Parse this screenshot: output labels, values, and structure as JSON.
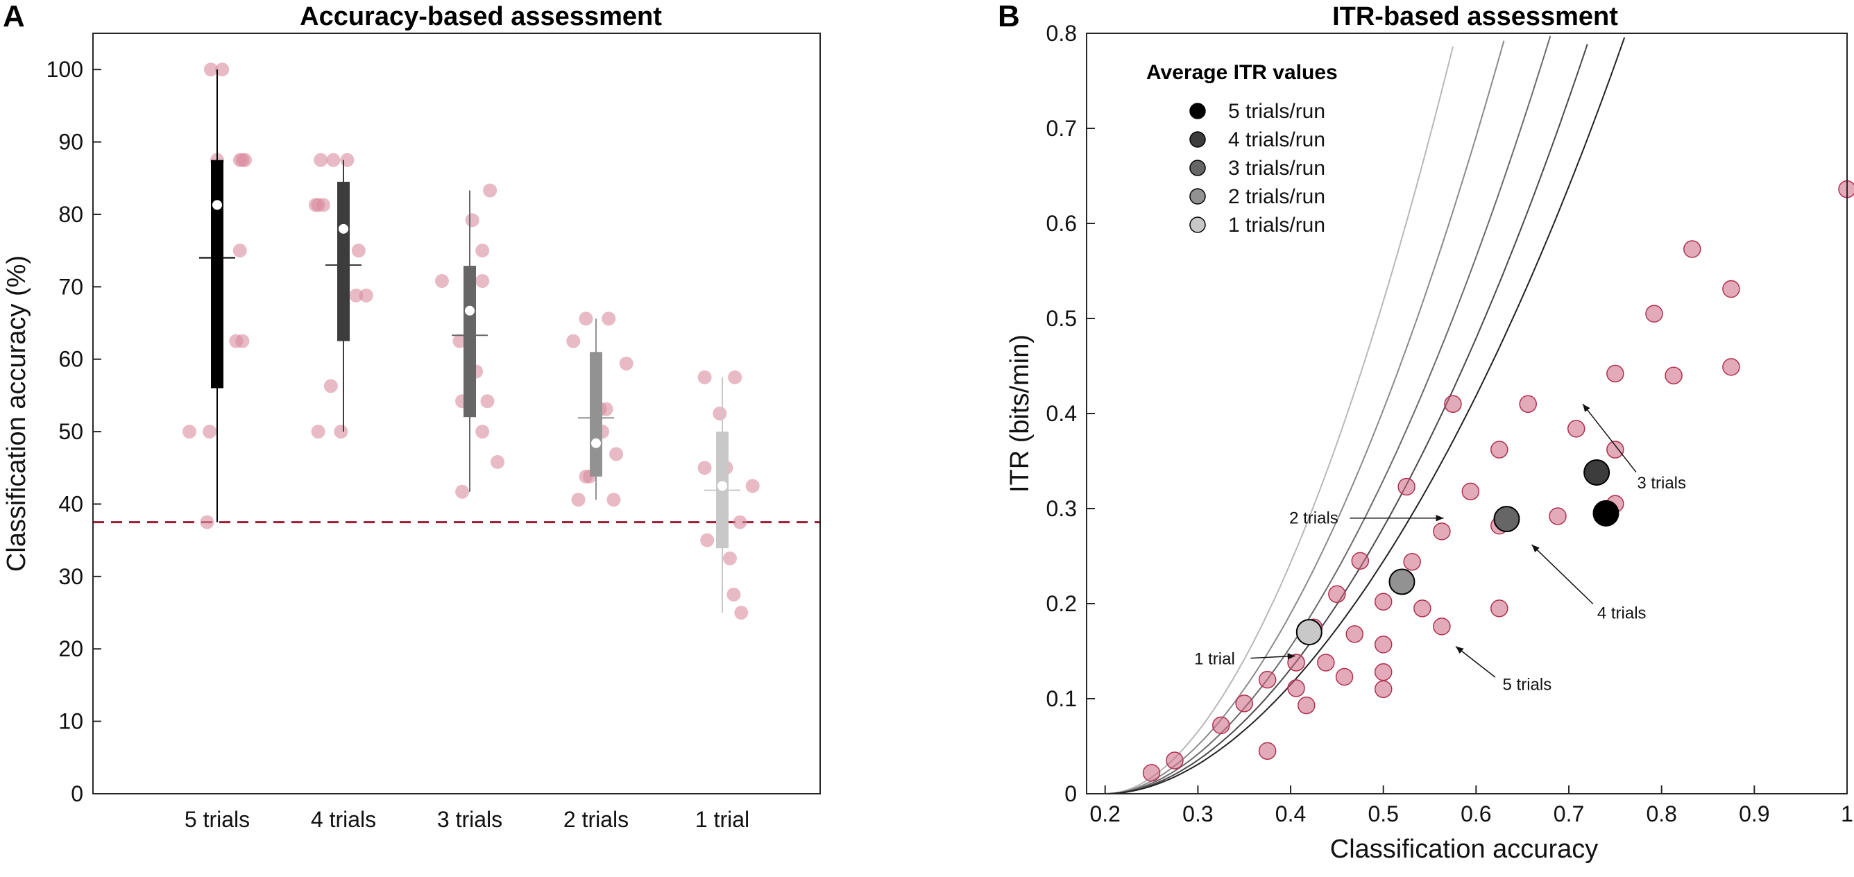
{
  "chart_data": [
    {
      "panel": "A",
      "type": "box+scatter",
      "title": "Accuracy-based assessment",
      "xlabel": "",
      "ylabel": "Classification accuracy (%)",
      "ylim": [
        0,
        105
      ],
      "yticks": [
        0,
        10,
        20,
        30,
        40,
        50,
        60,
        70,
        80,
        90,
        100
      ],
      "chance_level": 37.5,
      "chance_color": "#9b1b30",
      "point_color": "#d98c9e",
      "categories": [
        "5 trials",
        "4 trials",
        "3 trials",
        "2 trials",
        "1 trial"
      ],
      "boxes": [
        {
          "name": "5 trials",
          "whisker_low": 37.5,
          "q1": 56,
          "median": 74,
          "q3": 87.5,
          "whisker_high": 100,
          "mean": 81.3,
          "color": "#000000"
        },
        {
          "name": "4 trials",
          "whisker_low": 50,
          "q1": 62.5,
          "median": 73,
          "q3": 84.5,
          "whisker_high": 87.5,
          "mean": 78,
          "color": "#3c3c3c"
        },
        {
          "name": "3 trials",
          "whisker_low": 41.7,
          "q1": 52,
          "median": 63.3,
          "q3": 72.9,
          "whisker_high": 83.3,
          "mean": 66.7,
          "color": "#666666"
        },
        {
          "name": "2 trials",
          "whisker_low": 40.6,
          "q1": 43.8,
          "median": 51.9,
          "q3": 61,
          "whisker_high": 65.6,
          "mean": 48.4,
          "color": "#929292"
        },
        {
          "name": "1 trial",
          "whisker_low": 25,
          "q1": 33.9,
          "median": 41.9,
          "q3": 50,
          "whisker_high": 57.5,
          "mean": 42.5,
          "color": "#c8c8c8"
        }
      ],
      "points": [
        [
          [
            -0.22,
            50
          ],
          [
            -0.06,
            50
          ],
          [
            -0.08,
            37.5
          ],
          [
            -0.05,
            100
          ],
          [
            0.04,
            100
          ],
          [
            0.0,
            87.5
          ],
          [
            0.18,
            87.5
          ],
          [
            0.22,
            87.5
          ],
          [
            0.2,
            87.5
          ],
          [
            0.18,
            75
          ],
          [
            0.15,
            62.5
          ],
          [
            0.2,
            62.5
          ]
        ],
        [
          [
            -0.2,
            81.3
          ],
          [
            -0.16,
            81.3
          ],
          [
            -0.22,
            81.3
          ],
          [
            -0.18,
            87.5
          ],
          [
            -0.08,
            87.5
          ],
          [
            0.03,
            87.5
          ],
          [
            -0.2,
            50
          ],
          [
            -0.02,
            50
          ],
          [
            -0.1,
            56.3
          ],
          [
            0.12,
            75
          ],
          [
            0.1,
            68.8
          ],
          [
            0.18,
            68.8
          ]
        ],
        [
          [
            -0.22,
            70.8
          ],
          [
            -0.08,
            62.5
          ],
          [
            0.02,
            79.2
          ],
          [
            0.1,
            75
          ],
          [
            0.1,
            70.8
          ],
          [
            0.16,
            83.3
          ],
          [
            0.14,
            54.2
          ],
          [
            -0.06,
            54.2
          ],
          [
            0.1,
            50
          ],
          [
            0.22,
            45.8
          ],
          [
            -0.06,
            41.7
          ],
          [
            0.05,
            58.3
          ]
        ],
        [
          [
            -0.18,
            62.5
          ],
          [
            -0.08,
            65.6
          ],
          [
            0.1,
            65.6
          ],
          [
            0.24,
            59.4
          ],
          [
            0.16,
            46.9
          ],
          [
            0.05,
            50
          ],
          [
            -0.08,
            43.8
          ],
          [
            -0.05,
            43.8
          ],
          [
            -0.14,
            40.6
          ],
          [
            0.14,
            40.6
          ],
          [
            0.03,
            53.1
          ],
          [
            0.08,
            53.1
          ]
        ],
        [
          [
            -0.14,
            57.5
          ],
          [
            0.1,
            57.5
          ],
          [
            -0.02,
            52.5
          ],
          [
            -0.14,
            45
          ],
          [
            0.03,
            45
          ],
          [
            0.24,
            42.5
          ],
          [
            0.14,
            37.5
          ],
          [
            -0.12,
            35
          ],
          [
            0.06,
            32.5
          ],
          [
            0.09,
            27.5
          ],
          [
            0.15,
            25
          ]
        ]
      ]
    },
    {
      "panel": "B",
      "type": "line+scatter",
      "title": "ITR-based assessment",
      "xlabel": "Classification accuracy",
      "ylabel": "ITR (bits/min)",
      "xlim": [
        0.18,
        1.0
      ],
      "ylim": [
        0,
        0.8
      ],
      "xticks": [
        0.2,
        0.3,
        0.4,
        0.5,
        0.6,
        0.7,
        0.8,
        0.9,
        1
      ],
      "yticks": [
        0,
        0.1,
        0.2,
        0.3,
        0.4,
        0.5,
        0.6,
        0.7,
        0.8
      ],
      "curves": [
        {
          "name": "1 trial",
          "scale": 1.61,
          "color": "#b8b8b8"
        },
        {
          "name": "2 trials",
          "scale": 1.255,
          "color": "#8a8a8a"
        },
        {
          "name": "3 trials",
          "scale": 1.025,
          "color": "#6a6a6a"
        },
        {
          "name": "4 trials",
          "scale": 0.87,
          "color": "#4a4a4a"
        },
        {
          "name": "5 trials",
          "scale": 0.76,
          "color": "#222222"
        }
      ],
      "points": [
        [
          [
            0.25,
            0.022
          ],
          [
            0.275,
            0.035
          ],
          [
            0.325,
            0.072
          ],
          [
            0.375,
            0.12
          ],
          [
            0.425,
            0.175
          ],
          [
            0.45,
            0.21
          ],
          [
            0.475,
            0.245
          ],
          [
            0.525,
            0.323
          ],
          [
            0.575,
            0.41
          ]
        ],
        [
          [
            0.35,
            0.095
          ],
          [
            0.406,
            0.138
          ],
          [
            0.438,
            0.138
          ],
          [
            0.469,
            0.168
          ],
          [
            0.5,
            0.202
          ],
          [
            0.531,
            0.244
          ],
          [
            0.563,
            0.276
          ],
          [
            0.594,
            0.318
          ],
          [
            0.625,
            0.362
          ],
          [
            0.656,
            0.41
          ]
        ],
        [
          [
            0.375,
            0.045
          ],
          [
            0.417,
            0.093
          ],
          [
            0.458,
            0.123
          ],
          [
            0.5,
            0.157
          ],
          [
            0.542,
            0.195
          ],
          [
            0.625,
            0.282
          ],
          [
            0.708,
            0.384
          ],
          [
            0.75,
            0.442
          ],
          [
            0.792,
            0.505
          ],
          [
            0.833,
            0.573
          ]
        ],
        [
          [
            0.406,
            0.111
          ],
          [
            0.5,
            0.128
          ],
          [
            0.563,
            0.176
          ],
          [
            0.625,
            0.195
          ],
          [
            0.688,
            0.292
          ],
          [
            0.75,
            0.362
          ],
          [
            0.813,
            0.44
          ],
          [
            0.875,
            0.531
          ]
        ],
        [
          [
            0.5,
            0.11
          ],
          [
            0.75,
            0.305
          ],
          [
            0.875,
            0.449
          ],
          [
            1.0,
            0.636
          ]
        ]
      ],
      "averages": [
        {
          "label": "5 trials/run",
          "x": 0.74,
          "y": 0.295,
          "color": "#000000"
        },
        {
          "label": "4 trials/run",
          "x": 0.73,
          "y": 0.338,
          "color": "#3c3c3c"
        },
        {
          "label": "3 trials/run",
          "x": 0.633,
          "y": 0.289,
          "color": "#666666"
        },
        {
          "label": "2 trials/run",
          "x": 0.52,
          "y": 0.223,
          "color": "#929292"
        },
        {
          "label": "1 trials/run",
          "x": 0.42,
          "y": 0.17,
          "color": "#c8c8c8"
        }
      ],
      "legend_title": "Average ITR values",
      "legend_position": "top-left",
      "annotations": [
        {
          "text": "1 trial",
          "x": 0.318,
          "y": 0.142,
          "tx": 0.405,
          "ty": 0.145
        },
        {
          "text": "2 trials",
          "x": 0.425,
          "y": 0.29,
          "tx": 0.565,
          "ty": 0.29
        },
        {
          "text": "3 trials",
          "x": 0.8,
          "y": 0.327,
          "tx": 0.715,
          "ty": 0.41
        },
        {
          "text": "4 trials",
          "x": 0.757,
          "y": 0.19,
          "tx": 0.66,
          "ty": 0.262
        },
        {
          "text": "5 trials",
          "x": 0.655,
          "y": 0.115,
          "tx": 0.578,
          "ty": 0.155
        }
      ],
      "point_color": "#cc6680"
    }
  ],
  "panel_letters": {
    "a": "A",
    "b": "B"
  }
}
